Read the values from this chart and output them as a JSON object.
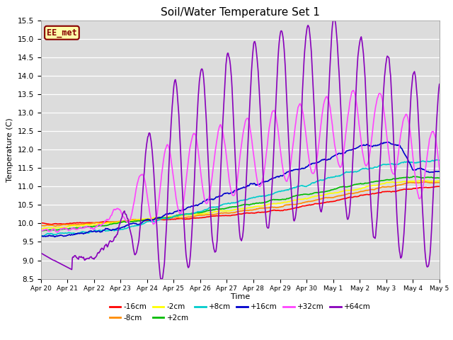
{
  "title": "Soil/Water Temperature Set 1",
  "xlabel": "Time",
  "ylabel": "Temperature (C)",
  "ylim": [
    8.5,
    15.5
  ],
  "yticks": [
    8.5,
    9.0,
    9.5,
    10.0,
    10.5,
    11.0,
    11.5,
    12.0,
    12.5,
    13.0,
    13.5,
    14.0,
    14.5,
    15.0,
    15.5
  ],
  "xtick_labels": [
    "Apr 20",
    "Apr 21",
    "Apr 22",
    "Apr 23",
    "Apr 24",
    "Apr 25",
    "Apr 26",
    "Apr 27",
    "Apr 28",
    "Apr 29",
    "Apr 30",
    "May 1",
    "May 2",
    "May 3",
    "May 4",
    "May 5"
  ],
  "series": {
    "-16cm": {
      "color": "#FF0000",
      "lw": 1.2
    },
    "-8cm": {
      "color": "#FF8C00",
      "lw": 1.2
    },
    "-2cm": {
      "color": "#FFFF00",
      "lw": 1.2
    },
    "+2cm": {
      "color": "#00BB00",
      "lw": 1.2
    },
    "+8cm": {
      "color": "#00CCCC",
      "lw": 1.2
    },
    "+16cm": {
      "color": "#0000CC",
      "lw": 1.2
    },
    "+32cm": {
      "color": "#FF44FF",
      "lw": 1.2
    },
    "+64cm": {
      "color": "#8800BB",
      "lw": 1.2
    }
  },
  "legend_order": [
    "-16cm",
    "-8cm",
    "-2cm",
    "+2cm",
    "+8cm",
    "+16cm",
    "+32cm",
    "+64cm"
  ],
  "watermark": "EE_met",
  "watermark_bg": "#FFFFAA",
  "watermark_fg": "#880000",
  "plot_bg": "#DCDCDC"
}
